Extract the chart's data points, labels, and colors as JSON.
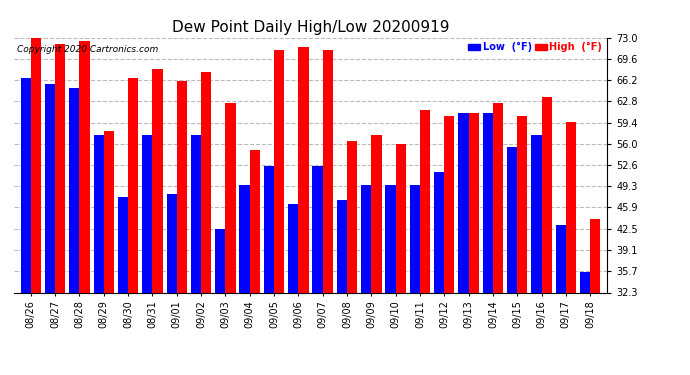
{
  "title": "Dew Point Daily High/Low 20200919",
  "copyright": "Copyright 2020 Cartronics.com",
  "dates": [
    "08/26",
    "08/27",
    "08/28",
    "08/29",
    "08/30",
    "08/31",
    "09/01",
    "09/02",
    "09/03",
    "09/04",
    "09/05",
    "09/06",
    "09/07",
    "09/08",
    "09/09",
    "09/10",
    "09/11",
    "09/12",
    "09/13",
    "09/14",
    "09/15",
    "09/16",
    "09/17",
    "09/18"
  ],
  "high": [
    73.0,
    72.0,
    72.5,
    58.0,
    66.5,
    68.0,
    66.0,
    67.5,
    62.5,
    55.0,
    71.0,
    71.5,
    71.0,
    56.5,
    57.5,
    56.0,
    61.5,
    60.5,
    61.0,
    62.5,
    60.5,
    63.5,
    59.5,
    44.0
  ],
  "low": [
    66.5,
    65.5,
    65.0,
    57.5,
    47.5,
    57.5,
    48.0,
    57.5,
    42.5,
    49.5,
    52.5,
    46.5,
    52.5,
    47.0,
    49.5,
    49.5,
    49.5,
    51.5,
    61.0,
    61.0,
    55.5,
    57.5,
    43.0,
    35.5
  ],
  "high_color": "#ff0000",
  "low_color": "#0000ff",
  "bg_color": "#ffffff",
  "grid_color": "#bbbbbb",
  "ymin": 32.3,
  "ymax": 73.0,
  "yticks": [
    32.3,
    35.7,
    39.1,
    42.5,
    45.9,
    49.3,
    52.6,
    56.0,
    59.4,
    62.8,
    66.2,
    69.6,
    73.0
  ],
  "title_fontsize": 11,
  "tick_fontsize": 7,
  "bar_width": 0.42,
  "figwidth": 6.9,
  "figheight": 3.75,
  "dpi": 100
}
